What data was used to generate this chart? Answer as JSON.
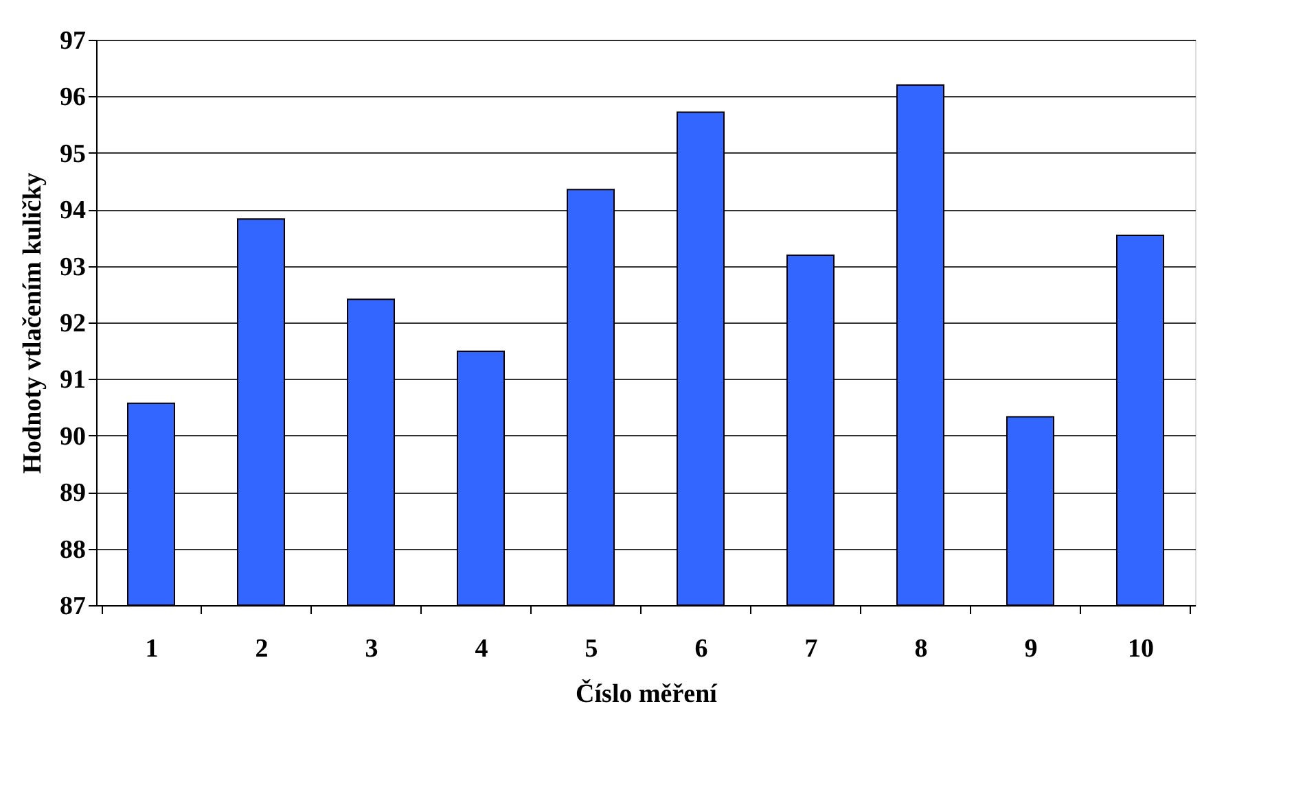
{
  "chart_data": {
    "type": "bar",
    "xlabel": "Číslo měření",
    "ylabel": "Hodnoty vtlačením kuličky",
    "categories": [
      "1",
      "2",
      "3",
      "4",
      "5",
      "6",
      "7",
      "8",
      "9",
      "10"
    ],
    "values": [
      90.57,
      93.83,
      92.41,
      91.49,
      94.35,
      95.72,
      93.19,
      96.2,
      90.33,
      93.54
    ],
    "color": "#3366ff",
    "ylim": [
      87,
      97
    ],
    "yticks": [
      87,
      88,
      89,
      90,
      91,
      92,
      93,
      94,
      95,
      96,
      97
    ],
    "grid": "y"
  }
}
